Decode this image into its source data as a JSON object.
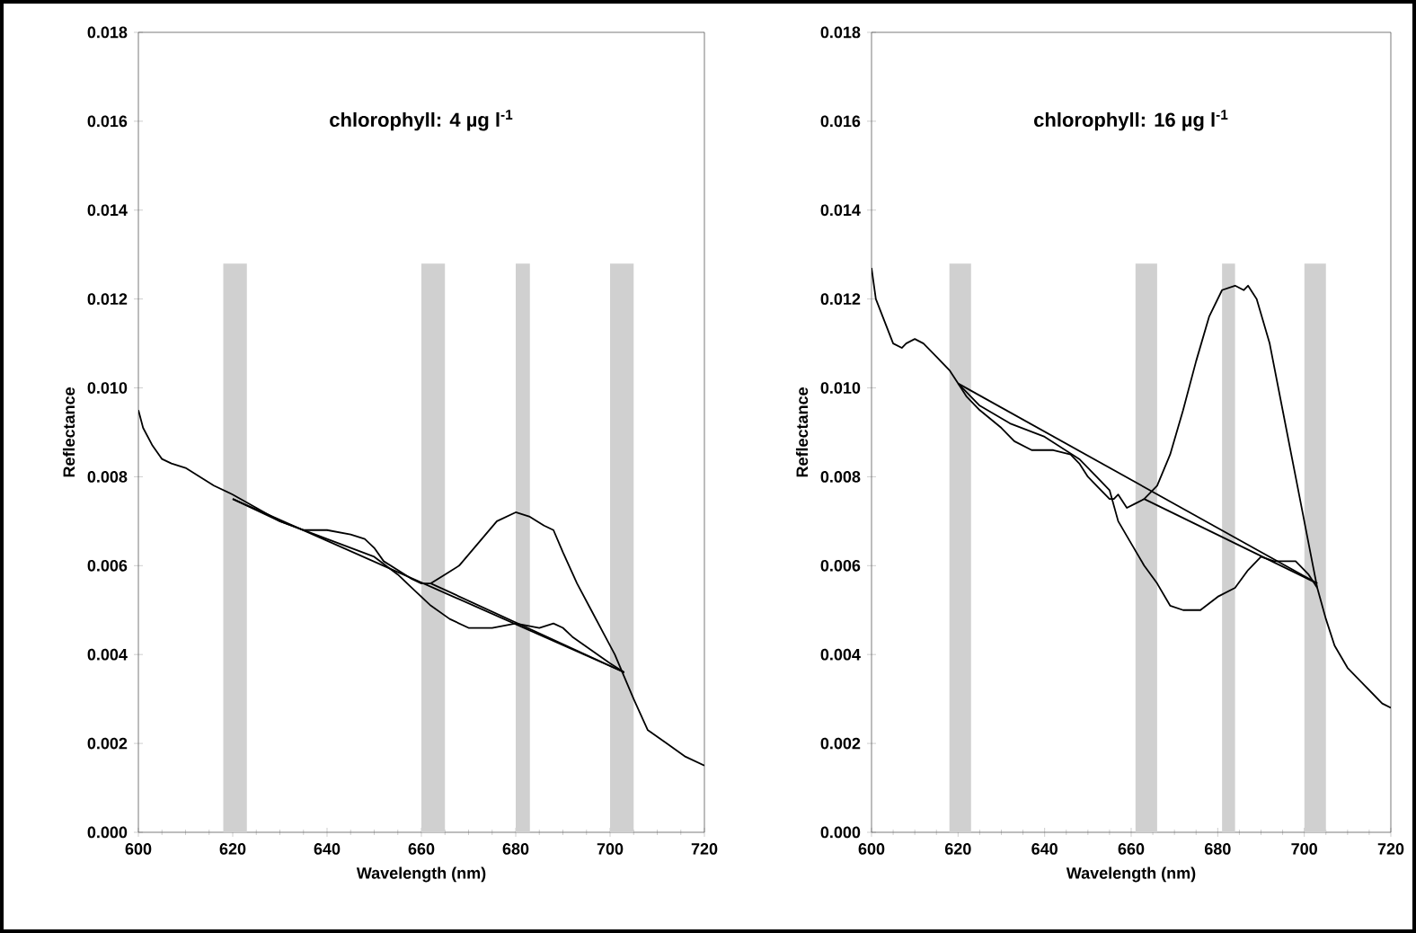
{
  "chart_data": [
    {
      "type": "line",
      "title": "chlorophyll: 4 µg l$^{-1}$",
      "xlabel": "Wavelength (nm)",
      "ylabel": "Reflectance",
      "xlim": [
        600,
        720
      ],
      "ylim": [
        0,
        0.018
      ],
      "xticks": [
        600,
        620,
        640,
        660,
        680,
        700,
        720
      ],
      "yticks": [
        {
          "value": 0,
          "label": "0.000"
        },
        {
          "value": 0.002,
          "label": "0.002"
        },
        {
          "value": 0.004,
          "label": "0.004"
        },
        {
          "value": 0.006,
          "label": "0.006"
        },
        {
          "value": 0.008,
          "label": "0.008"
        },
        {
          "value": 0.01,
          "label": "0.010"
        },
        {
          "value": 0.012,
          "label": "0.012"
        },
        {
          "value": 0.014,
          "label": "0.014"
        },
        {
          "value": 0.016,
          "label": "0.016"
        },
        {
          "value": 0.018,
          "label": "0.018"
        }
      ],
      "bands": [
        {
          "axis": "x",
          "from": 618,
          "to": 623,
          "color": "#d0d0d0"
        },
        {
          "axis": "x",
          "from": 660,
          "to": 665,
          "color": "#d0d0d0"
        },
        {
          "axis": "x",
          "from": 680,
          "to": 683,
          "color": "#d0d0d0"
        },
        {
          "axis": "x",
          "from": 700,
          "to": 705,
          "color": "#d0d0d0"
        }
      ],
      "series": [
        {
          "color": "#000000",
          "x": [
            600,
            601,
            603,
            605,
            607,
            610,
            613,
            616,
            620,
            625,
            630,
            635,
            640,
            645,
            648,
            650,
            652,
            655,
            658,
            660,
            662,
            665,
            668,
            672,
            676,
            680,
            683,
            686,
            688,
            690,
            693,
            696,
            699,
            701,
            703,
            705,
            708,
            712,
            716,
            720
          ],
          "values": [
            0.0095,
            0.0091,
            0.0087,
            0.0084,
            0.0083,
            0.0082,
            0.008,
            0.0078,
            0.0076,
            0.0073,
            0.007,
            0.0068,
            0.0068,
            0.0067,
            0.0066,
            0.0064,
            0.0061,
            0.0059,
            0.0057,
            0.0056,
            0.0056,
            0.0058,
            0.006,
            0.0065,
            0.007,
            0.0072,
            0.0071,
            0.0069,
            0.0068,
            0.0063,
            0.0056,
            0.005,
            0.0044,
            0.004,
            0.0035,
            0.003,
            0.0023,
            0.002,
            0.0017,
            0.0015
          ]
        },
        {
          "color": "#000000",
          "x": [
            620,
            630,
            640,
            650,
            655,
            658,
            662,
            666,
            670,
            675,
            680,
            685,
            688,
            690,
            692,
            696,
            700,
            703
          ],
          "values": [
            0.0075,
            0.007,
            0.0066,
            0.0062,
            0.0058,
            0.0055,
            0.0051,
            0.0048,
            0.0046,
            0.0046,
            0.0047,
            0.0046,
            0.0047,
            0.0046,
            0.0044,
            0.0041,
            0.0038,
            0.0036
          ]
        },
        {
          "color": "#000000",
          "x": [
            620,
            703
          ],
          "values": [
            0.0075,
            0.0036
          ]
        },
        {
          "color": "#000000",
          "x": [
            662,
            703
          ],
          "values": [
            0.0056,
            0.0036
          ]
        }
      ]
    },
    {
      "type": "line",
      "title": "chlorophyll: 16 µg l$^{-1}$",
      "xlabel": "Wavelength (nm)",
      "ylabel": "Reflectance",
      "xlim": [
        600,
        720
      ],
      "ylim": [
        0,
        0.018
      ],
      "xticks": [
        600,
        620,
        640,
        660,
        680,
        700,
        720
      ],
      "yticks": [
        {
          "value": 0,
          "label": "0.000"
        },
        {
          "value": 0.002,
          "label": "0.002"
        },
        {
          "value": 0.004,
          "label": "0.004"
        },
        {
          "value": 0.006,
          "label": "0.006"
        },
        {
          "value": 0.008,
          "label": "0.008"
        },
        {
          "value": 0.01,
          "label": "0.010"
        },
        {
          "value": 0.012,
          "label": "0.012"
        },
        {
          "value": 0.014,
          "label": "0.014"
        },
        {
          "value": 0.016,
          "label": "0.016"
        },
        {
          "value": 0.018,
          "label": "0.018"
        }
      ],
      "bands": [
        {
          "axis": "x",
          "from": 618,
          "to": 623,
          "color": "#d0d0d0"
        },
        {
          "axis": "x",
          "from": 661,
          "to": 666,
          "color": "#d0d0d0"
        },
        {
          "axis": "x",
          "from": 681,
          "to": 684,
          "color": "#d0d0d0"
        },
        {
          "axis": "x",
          "from": 700,
          "to": 705,
          "color": "#d0d0d0"
        }
      ],
      "series": [
        {
          "color": "#000000",
          "x": [
            600,
            601,
            603,
            605,
            607,
            608,
            610,
            612,
            615,
            618,
            620,
            622,
            625,
            630,
            633,
            637,
            642,
            646,
            648,
            650,
            652,
            655,
            656,
            657,
            659,
            661,
            663,
            666,
            669,
            672,
            675,
            678,
            681,
            684,
            686,
            687,
            689,
            692,
            695,
            698,
            700,
            702,
            703,
            705,
            707,
            710,
            714,
            718,
            720
          ],
          "values": [
            0.0127,
            0.012,
            0.0115,
            0.011,
            0.0109,
            0.011,
            0.0111,
            0.011,
            0.0107,
            0.0104,
            0.0101,
            0.0098,
            0.0095,
            0.0091,
            0.0088,
            0.0086,
            0.0086,
            0.0085,
            0.0083,
            0.008,
            0.0078,
            0.0075,
            0.0075,
            0.0076,
            0.0073,
            0.0074,
            0.0075,
            0.0078,
            0.0085,
            0.0095,
            0.0106,
            0.0116,
            0.0122,
            0.0123,
            0.0122,
            0.0123,
            0.012,
            0.011,
            0.0095,
            0.008,
            0.007,
            0.006,
            0.0055,
            0.0048,
            0.0042,
            0.0037,
            0.0033,
            0.0029,
            0.0028
          ]
        },
        {
          "color": "#000000",
          "x": [
            620,
            625,
            632,
            640,
            648,
            652,
            655,
            657,
            660,
            663,
            666,
            669,
            672,
            676,
            680,
            684,
            687,
            690,
            693,
            698,
            701,
            703
          ],
          "values": [
            0.0101,
            0.0096,
            0.0092,
            0.0089,
            0.0084,
            0.008,
            0.0077,
            0.007,
            0.0065,
            0.006,
            0.0056,
            0.0051,
            0.005,
            0.005,
            0.0053,
            0.0055,
            0.0059,
            0.0062,
            0.0061,
            0.0061,
            0.0058,
            0.0055
          ]
        },
        {
          "color": "#000000",
          "x": [
            620,
            703
          ],
          "values": [
            0.0101,
            0.0056
          ]
        },
        {
          "color": "#000000",
          "x": [
            663,
            703
          ],
          "values": [
            0.0075,
            0.0056
          ]
        }
      ]
    }
  ]
}
